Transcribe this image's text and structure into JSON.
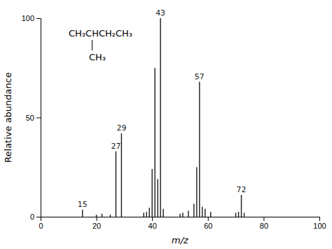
{
  "chart_data": {
    "type": "stem",
    "xlabel": "m/z",
    "ylabel": "Relative abundance",
    "x": [
      15,
      20,
      22,
      25,
      27,
      29,
      37,
      38,
      39,
      40,
      41,
      42,
      43,
      44,
      50,
      51,
      53,
      55,
      56,
      57,
      58,
      59,
      61,
      70,
      71,
      72,
      73
    ],
    "values": [
      3.5,
      1.0,
      1.5,
      1.0,
      33,
      42,
      2.0,
      2.5,
      4.5,
      24,
      75,
      19,
      100,
      4.0,
      1.5,
      2.0,
      3.0,
      6.5,
      25,
      68,
      5.0,
      4.0,
      2.5,
      2.0,
      2.5,
      11,
      2.0
    ],
    "labels": [
      "15",
      null,
      null,
      null,
      "27",
      "29",
      null,
      null,
      null,
      null,
      null,
      null,
      "43",
      null,
      null,
      null,
      null,
      null,
      null,
      "57",
      null,
      null,
      null,
      null,
      null,
      "72",
      null
    ],
    "color": "#1a1a1a",
    "xlim": [
      0,
      100
    ],
    "ylim": [
      0,
      100
    ],
    "xticks": [
      0,
      20,
      40,
      60,
      80,
      100
    ],
    "yticks": [
      0,
      50,
      100
    ],
    "grid": false,
    "annotations": [
      "CH₃CHCH₂CH₃",
      "CH₃"
    ]
  }
}
